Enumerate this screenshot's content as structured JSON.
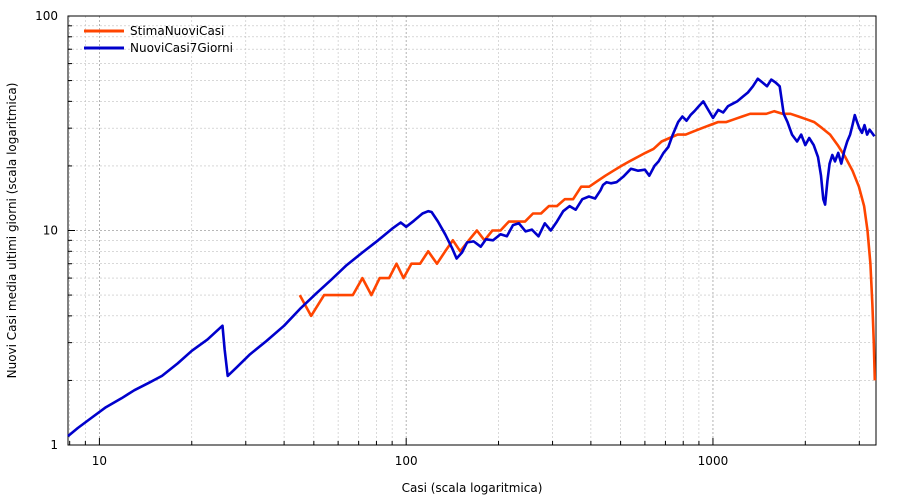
{
  "chart_data": {
    "type": "line",
    "title": "",
    "xlabel": "Casi (scala logaritmica)",
    "ylabel": "Nuovi Casi media ultimi giorni (scala logaritmica)",
    "xscale": "log",
    "yscale": "log",
    "xlim": [
      7.9,
      3400
    ],
    "ylim": [
      1,
      100
    ],
    "x_ticks": [
      10,
      100,
      1000
    ],
    "x_tick_labels": [
      "10",
      "100",
      "1000"
    ],
    "y_ticks": [
      1,
      10,
      100
    ],
    "y_tick_labels": [
      "1",
      "10",
      "100"
    ],
    "grid": true,
    "legend": "top-left",
    "series": [
      {
        "name": "StimaNuoviCasi",
        "color": "#ff4500",
        "points": [
          [
            45,
            5
          ],
          [
            49,
            4
          ],
          [
            54,
            5
          ],
          [
            58,
            5
          ],
          [
            62,
            5
          ],
          [
            67,
            5
          ],
          [
            72,
            6
          ],
          [
            77,
            5
          ],
          [
            82,
            6
          ],
          [
            88,
            6
          ],
          [
            93,
            7
          ],
          [
            98,
            6
          ],
          [
            104,
            7
          ],
          [
            111,
            7
          ],
          [
            118,
            8
          ],
          [
            126,
            7
          ],
          [
            134,
            8
          ],
          [
            142,
            9
          ],
          [
            150,
            8
          ],
          [
            160,
            9
          ],
          [
            170,
            10
          ],
          [
            180,
            9
          ],
          [
            191,
            10
          ],
          [
            203,
            10
          ],
          [
            216,
            11
          ],
          [
            230,
            11
          ],
          [
            244,
            11
          ],
          [
            259,
            12
          ],
          [
            275,
            12
          ],
          [
            292,
            13
          ],
          [
            310,
            13
          ],
          [
            329,
            14
          ],
          [
            350,
            14
          ],
          [
            372,
            16
          ],
          [
            395,
            16
          ],
          [
            420,
            17
          ],
          [
            446,
            18
          ],
          [
            474,
            19
          ],
          [
            503,
            20
          ],
          [
            534,
            21
          ],
          [
            567,
            22
          ],
          [
            602,
            23
          ],
          [
            640,
            24
          ],
          [
            680,
            26
          ],
          [
            722,
            27
          ],
          [
            767,
            28
          ],
          [
            815,
            28
          ],
          [
            866,
            29
          ],
          [
            920,
            30
          ],
          [
            977,
            31
          ],
          [
            1038,
            32
          ],
          [
            1103,
            32
          ],
          [
            1172,
            33
          ],
          [
            1245,
            34
          ],
          [
            1322,
            35
          ],
          [
            1405,
            35
          ],
          [
            1492,
            35
          ],
          [
            1585,
            36
          ],
          [
            1684,
            35
          ],
          [
            1789,
            35
          ],
          [
            1900,
            34
          ],
          [
            2020,
            33
          ],
          [
            2140,
            32
          ],
          [
            2270,
            30
          ],
          [
            2410,
            28
          ],
          [
            2550,
            25
          ],
          [
            2700,
            22
          ],
          [
            2850,
            19
          ],
          [
            2990,
            16
          ],
          [
            3110,
            13
          ],
          [
            3190,
            10
          ],
          [
            3260,
            7
          ],
          [
            3310,
            4.5
          ],
          [
            3345,
            3
          ],
          [
            3370,
            2
          ]
        ]
      },
      {
        "name": "NuoviCasi7Giorni",
        "color": "#0000cc",
        "points": [
          [
            7.9,
            1.1
          ],
          [
            8.5,
            1.2
          ],
          [
            9.5,
            1.35
          ],
          [
            10.5,
            1.5
          ],
          [
            11.8,
            1.65
          ],
          [
            13,
            1.8
          ],
          [
            14.5,
            1.95
          ],
          [
            16,
            2.1
          ],
          [
            18,
            2.4
          ],
          [
            20,
            2.75
          ],
          [
            22.5,
            3.1
          ],
          [
            25.2,
            3.6
          ],
          [
            25.6,
            2.8
          ],
          [
            26.2,
            2.1
          ],
          [
            28,
            2.3
          ],
          [
            31,
            2.65
          ],
          [
            35,
            3.05
          ],
          [
            40,
            3.6
          ],
          [
            45,
            4.3
          ],
          [
            51,
            5.1
          ],
          [
            57,
            5.9
          ],
          [
            64,
            6.9
          ],
          [
            72,
            7.9
          ],
          [
            81,
            9.0
          ],
          [
            90,
            10.2
          ],
          [
            96,
            10.9
          ],
          [
            100,
            10.4
          ],
          [
            106,
            11.1
          ],
          [
            113,
            12.0
          ],
          [
            118,
            12.3
          ],
          [
            121,
            12.2
          ],
          [
            127,
            11.0
          ],
          [
            134,
            9.6
          ],
          [
            141,
            8.3
          ],
          [
            146,
            7.4
          ],
          [
            152,
            7.9
          ],
          [
            158,
            8.8
          ],
          [
            166,
            8.9
          ],
          [
            175,
            8.4
          ],
          [
            182,
            9.1
          ],
          [
            192,
            9.0
          ],
          [
            203,
            9.6
          ],
          [
            213,
            9.4
          ],
          [
            223,
            10.6
          ],
          [
            233,
            10.8
          ],
          [
            245,
            9.9
          ],
          [
            257,
            10.1
          ],
          [
            270,
            9.4
          ],
          [
            283,
            10.8
          ],
          [
            296,
            10.0
          ],
          [
            310,
            11.0
          ],
          [
            325,
            12.3
          ],
          [
            341,
            13.0
          ],
          [
            357,
            12.5
          ],
          [
            375,
            14.0
          ],
          [
            394,
            14.4
          ],
          [
            413,
            14.1
          ],
          [
            430,
            15.4
          ],
          [
            438,
            16.3
          ],
          [
            450,
            16.8
          ],
          [
            465,
            16.6
          ],
          [
            485,
            16.8
          ],
          [
            510,
            17.8
          ],
          [
            540,
            19.4
          ],
          [
            570,
            19.0
          ],
          [
            600,
            19.2
          ],
          [
            620,
            18.0
          ],
          [
            645,
            20.0
          ],
          [
            665,
            21.0
          ],
          [
            690,
            23.0
          ],
          [
            715,
            24.5
          ],
          [
            740,
            28.0
          ],
          [
            770,
            32.0
          ],
          [
            795,
            34.0
          ],
          [
            820,
            32.5
          ],
          [
            845,
            34.5
          ],
          [
            870,
            36.0
          ],
          [
            900,
            38.0
          ],
          [
            930,
            40.0
          ],
          [
            960,
            37.0
          ],
          [
            1000,
            33.5
          ],
          [
            1040,
            36.5
          ],
          [
            1080,
            35.5
          ],
          [
            1120,
            38.0
          ],
          [
            1160,
            39.0
          ],
          [
            1200,
            40.0
          ],
          [
            1250,
            42.0
          ],
          [
            1300,
            44.0
          ],
          [
            1350,
            47.0
          ],
          [
            1400,
            51.0
          ],
          [
            1450,
            49.0
          ],
          [
            1500,
            47.0
          ],
          [
            1550,
            50.5
          ],
          [
            1600,
            49.0
          ],
          [
            1650,
            47.0
          ],
          [
            1700,
            35.0
          ],
          [
            1750,
            32.0
          ],
          [
            1810,
            28.0
          ],
          [
            1880,
            26.0
          ],
          [
            1940,
            28.0
          ],
          [
            2000,
            25.0
          ],
          [
            2060,
            27.0
          ],
          [
            2130,
            25.0
          ],
          [
            2200,
            22.0
          ],
          [
            2250,
            18.0
          ],
          [
            2290,
            14.0
          ],
          [
            2320,
            13.2
          ],
          [
            2360,
            17.0
          ],
          [
            2400,
            20.5
          ],
          [
            2450,
            22.5
          ],
          [
            2500,
            21.0
          ],
          [
            2560,
            23.0
          ],
          [
            2620,
            20.5
          ],
          [
            2680,
            23.5
          ],
          [
            2740,
            26.0
          ],
          [
            2800,
            28.0
          ],
          [
            2850,
            31.0
          ],
          [
            2900,
            34.5
          ],
          [
            2950,
            32.0
          ],
          [
            3000,
            30.0
          ],
          [
            3060,
            28.5
          ],
          [
            3120,
            31.0
          ],
          [
            3180,
            28.0
          ],
          [
            3240,
            29.5
          ],
          [
            3300,
            28.5
          ],
          [
            3360,
            27.5
          ]
        ]
      }
    ]
  }
}
